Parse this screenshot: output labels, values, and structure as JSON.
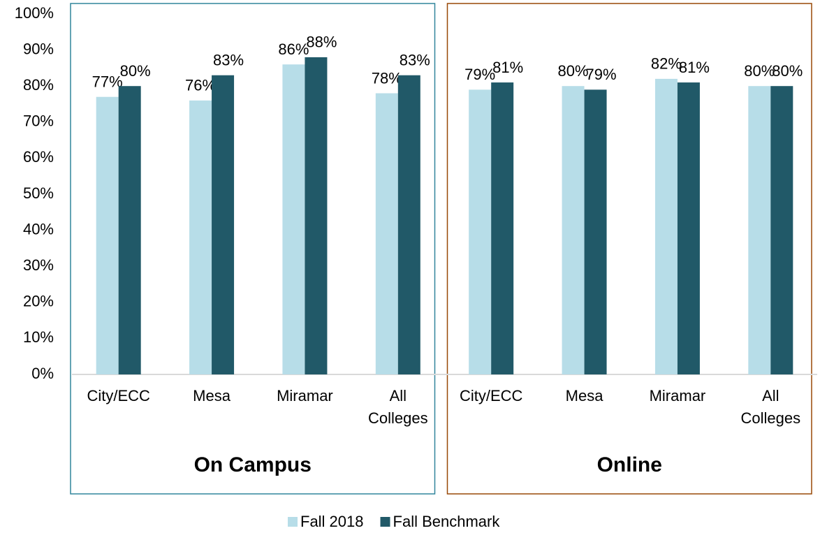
{
  "chart_data": {
    "type": "bar",
    "categories": [
      "City/ECC",
      "Mesa",
      "Miramar",
      "All Colleges",
      "City/ECC",
      "Mesa",
      "Miramar",
      "All Colleges"
    ],
    "groups": [
      {
        "name": "On Campus",
        "color": "#31859c"
      },
      {
        "name": "Online",
        "color": "#984807"
      }
    ],
    "series": [
      {
        "name": "Fall 2018",
        "color": "#b7dde8",
        "values": [
          77,
          76,
          86,
          78,
          79,
          80,
          82,
          80
        ],
        "value_labels": [
          "77%",
          "76%",
          "86%",
          "78%",
          "79%",
          "80%",
          "82%",
          "80%"
        ]
      },
      {
        "name": "Fall Benchmark",
        "color": "#215968",
        "values": [
          80,
          83,
          88,
          83,
          81,
          79,
          81,
          80
        ],
        "value_labels": [
          "80%",
          "83%",
          "88%",
          "83%",
          "81%",
          "79%",
          "81%",
          "80%"
        ]
      }
    ],
    "ylim": [
      0,
      100
    ],
    "yticks": [
      {
        "value": 0,
        "label": "0%"
      },
      {
        "value": 10,
        "label": "10%"
      },
      {
        "value": 20,
        "label": "20%"
      },
      {
        "value": 30,
        "label": "30%"
      },
      {
        "value": 40,
        "label": "40%"
      },
      {
        "value": 50,
        "label": "50%"
      },
      {
        "value": 60,
        "label": "60%"
      },
      {
        "value": 70,
        "label": "70%"
      },
      {
        "value": 80,
        "label": "80%"
      },
      {
        "value": 90,
        "label": "90%"
      },
      {
        "value": 100,
        "label": "100%"
      }
    ],
    "legend": "bottom"
  }
}
